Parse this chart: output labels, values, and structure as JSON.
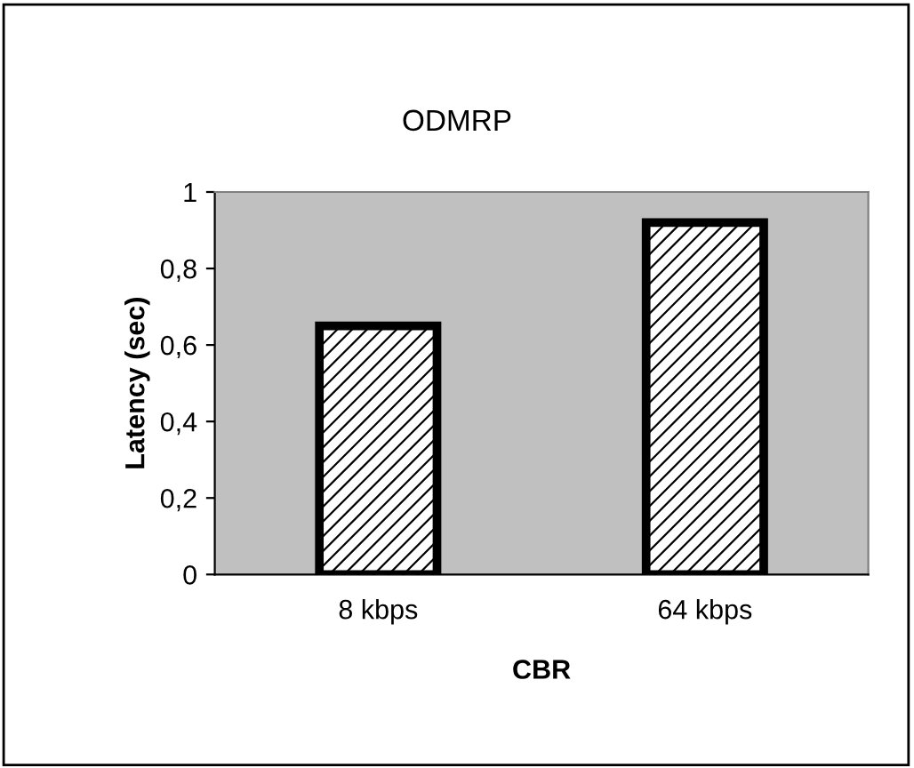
{
  "chart_data": {
    "type": "bar",
    "title": "ODMRP",
    "xlabel": "CBR",
    "ylabel": "Latency (sec)",
    "categories": [
      "8 kbps",
      "64 kbps"
    ],
    "values": [
      0.65,
      0.92
    ],
    "color": "#000000",
    "ylim": [
      0,
      1
    ],
    "yticks": [
      0,
      {
        "value": 0.2,
        "label": "0,2"
      },
      {
        "value": 0.4,
        "label": "0,4"
      },
      {
        "value": 0.6,
        "label": "0,6"
      },
      {
        "value": 0.8,
        "label": "0,8"
      },
      1
    ],
    "grid": false,
    "legend": false
  }
}
